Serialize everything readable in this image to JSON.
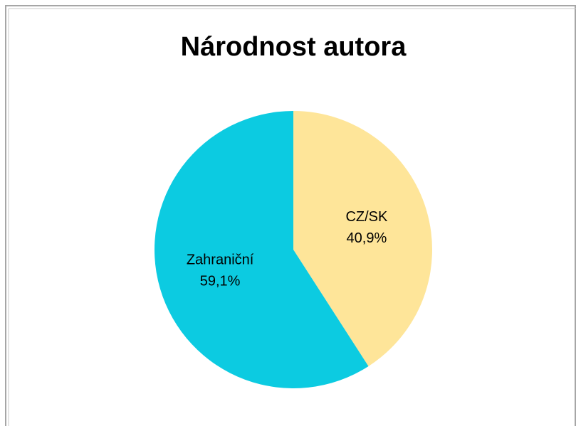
{
  "chart_data": {
    "type": "pie",
    "title": "Národnost autora",
    "categories": [
      "CZ/SK",
      "Zahraniční"
    ],
    "values": [
      40.9,
      59.1
    ],
    "value_labels": [
      "40,9%",
      "59,1%"
    ],
    "colors": [
      "#fee599",
      "#0ccbe1"
    ]
  }
}
